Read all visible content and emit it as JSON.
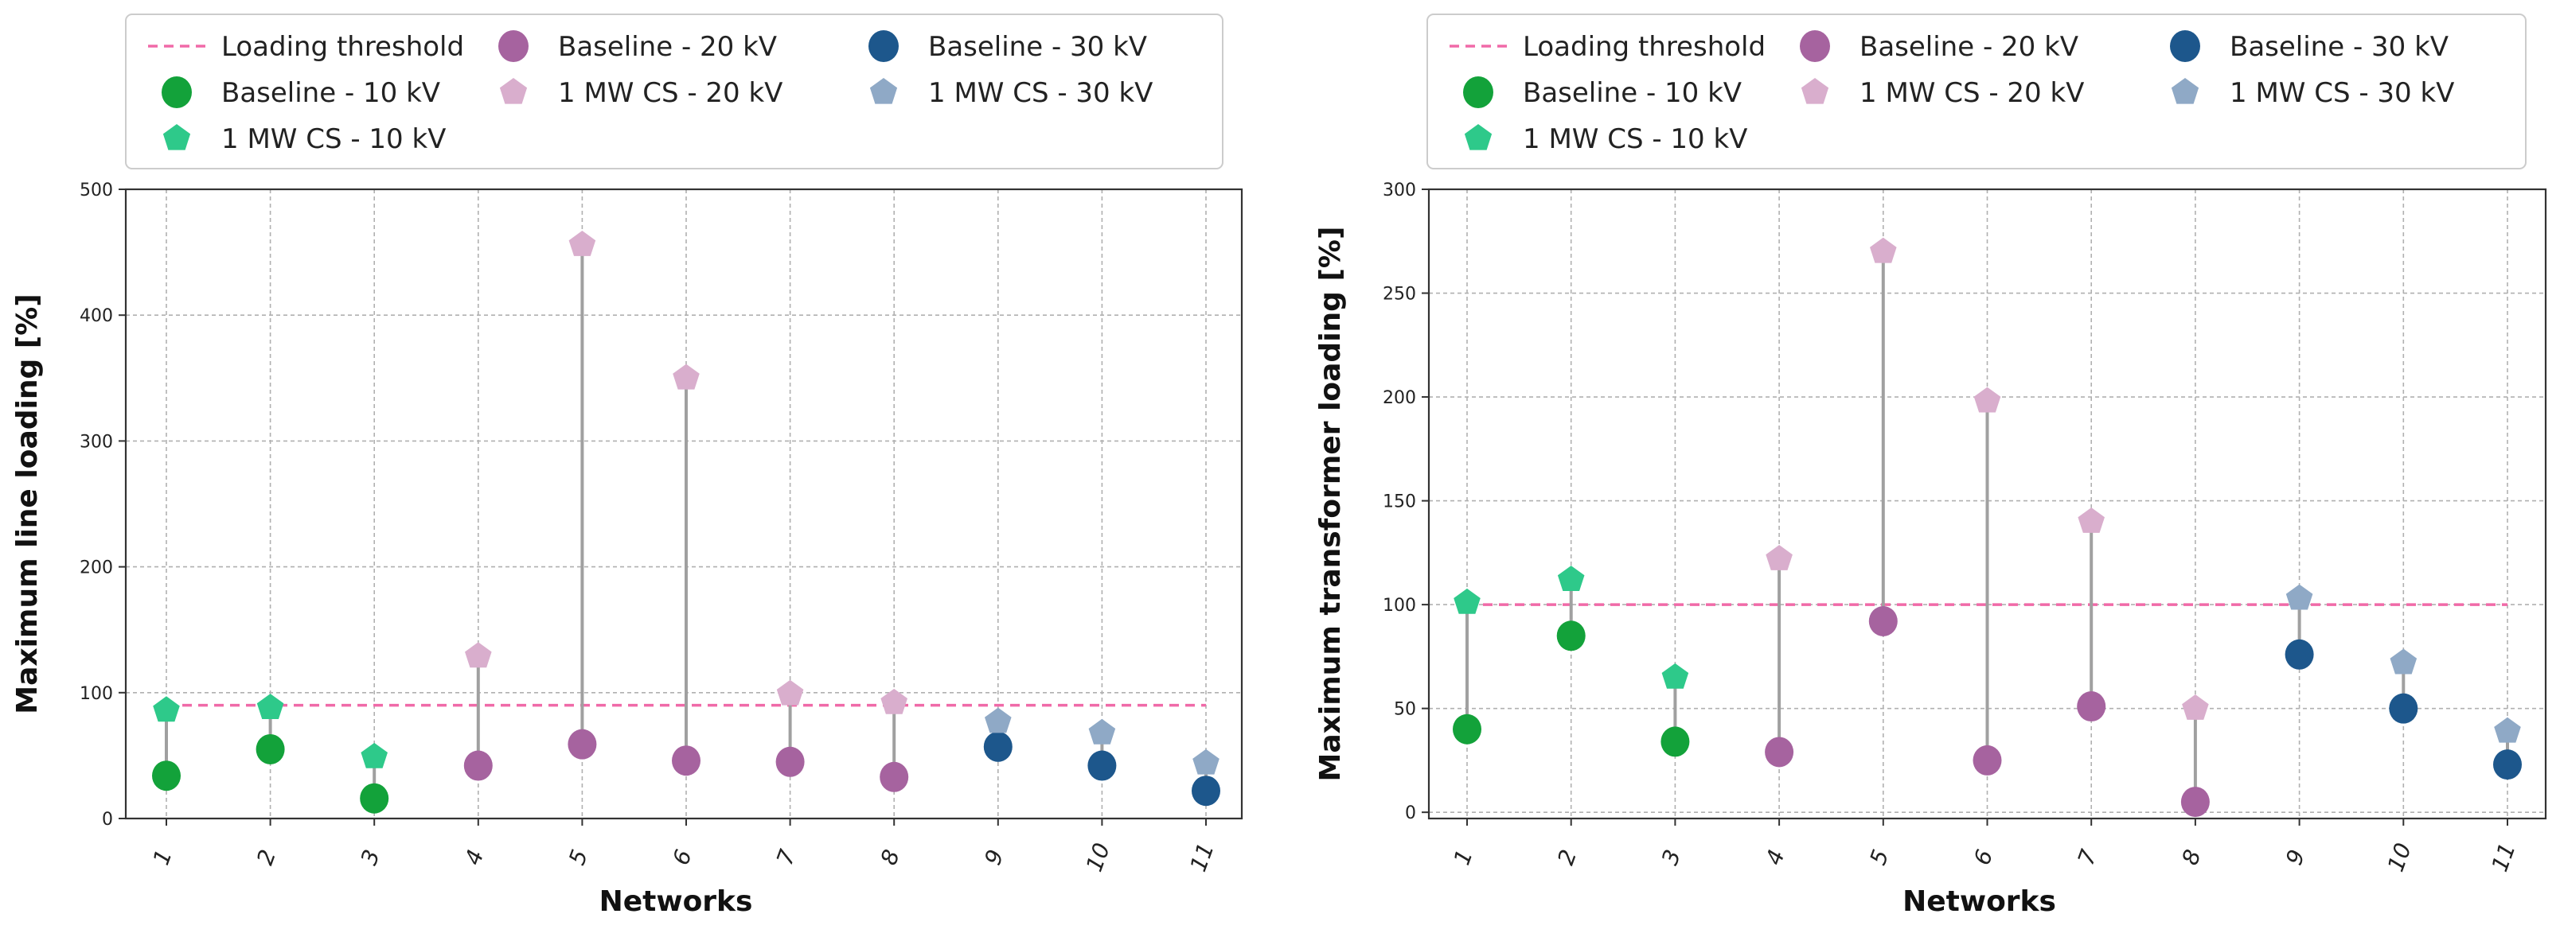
{
  "chart_data": [
    {
      "type": "scatter",
      "title": "",
      "xlabel": "Networks",
      "ylabel": "Maximum line loading [%]",
      "ylim": [
        0,
        500
      ],
      "yticks": [
        0,
        100,
        200,
        300,
        400,
        500
      ],
      "categories": [
        "1",
        "2",
        "3",
        "4",
        "5",
        "6",
        "7",
        "8",
        "9",
        "10",
        "11"
      ],
      "grid": true,
      "threshold": {
        "name": "Loading threshold",
        "value": 90
      },
      "series": [
        {
          "name": "Baseline - 10 kV",
          "marker": "circle",
          "color": "#13a23a",
          "categories": [
            "1",
            "2",
            "3"
          ],
          "values": [
            34,
            55,
            16
          ]
        },
        {
          "name": "1 MW CS - 10 kV",
          "marker": "pentagon",
          "color": "#2ec98a",
          "categories": [
            "1",
            "2",
            "3"
          ],
          "values": [
            86,
            88,
            49
          ]
        },
        {
          "name": "Baseline - 20 kV",
          "marker": "circle",
          "color": "#a6639f",
          "categories": [
            "4",
            "5",
            "6",
            "7",
            "8"
          ],
          "values": [
            42,
            59,
            46,
            45,
            33
          ]
        },
        {
          "name": "1 MW CS - 20 kV",
          "marker": "pentagon",
          "color": "#d9aecd",
          "categories": [
            "4",
            "5",
            "6",
            "7",
            "8"
          ],
          "values": [
            129,
            456,
            350,
            99,
            92
          ]
        },
        {
          "name": "Baseline - 30 kV",
          "marker": "circle",
          "color": "#1d578c",
          "categories": [
            "9",
            "10",
            "11"
          ],
          "values": [
            57,
            42,
            22
          ]
        },
        {
          "name": "1 MW CS - 30 kV",
          "marker": "pentagon",
          "color": "#8fa9c6",
          "categories": [
            "9",
            "10",
            "11"
          ],
          "values": [
            77,
            68,
            44
          ]
        }
      ]
    },
    {
      "type": "scatter",
      "title": "",
      "xlabel": "Networks",
      "ylabel": "Maximum transformer loading [%]",
      "ylim": [
        -3,
        300
      ],
      "yticks": [
        0,
        50,
        100,
        150,
        200,
        250,
        300
      ],
      "categories": [
        "1",
        "2",
        "3",
        "4",
        "5",
        "6",
        "7",
        "8",
        "9",
        "10",
        "11"
      ],
      "grid": true,
      "threshold": {
        "name": "Loading threshold",
        "value": 100
      },
      "series": [
        {
          "name": "Baseline - 10 kV",
          "marker": "circle",
          "color": "#13a23a",
          "categories": [
            "1",
            "2",
            "3"
          ],
          "values": [
            40,
            85,
            34
          ]
        },
        {
          "name": "1 MW CS - 10 kV",
          "marker": "pentagon",
          "color": "#2ec98a",
          "categories": [
            "1",
            "2",
            "3"
          ],
          "values": [
            101,
            112,
            65
          ]
        },
        {
          "name": "Baseline - 20 kV",
          "marker": "circle",
          "color": "#a6639f",
          "categories": [
            "4",
            "5",
            "6",
            "7",
            "8"
          ],
          "values": [
            29,
            92,
            25,
            51,
            5
          ]
        },
        {
          "name": "1 MW CS - 20 kV",
          "marker": "pentagon",
          "color": "#d9aecd",
          "categories": [
            "4",
            "5",
            "6",
            "7",
            "8"
          ],
          "values": [
            122,
            270,
            198,
            140,
            50
          ]
        },
        {
          "name": "Baseline - 30 kV",
          "marker": "circle",
          "color": "#1d578c",
          "categories": [
            "9",
            "10",
            "11"
          ],
          "values": [
            76,
            50,
            23
          ]
        },
        {
          "name": "1 MW CS - 30 kV",
          "marker": "pentagon",
          "color": "#8fa9c6",
          "categories": [
            "9",
            "10",
            "11"
          ],
          "values": [
            103,
            72,
            39
          ]
        }
      ]
    }
  ],
  "colors": {
    "threshold": "#f06aa8",
    "stem": "#a0a0a0"
  }
}
